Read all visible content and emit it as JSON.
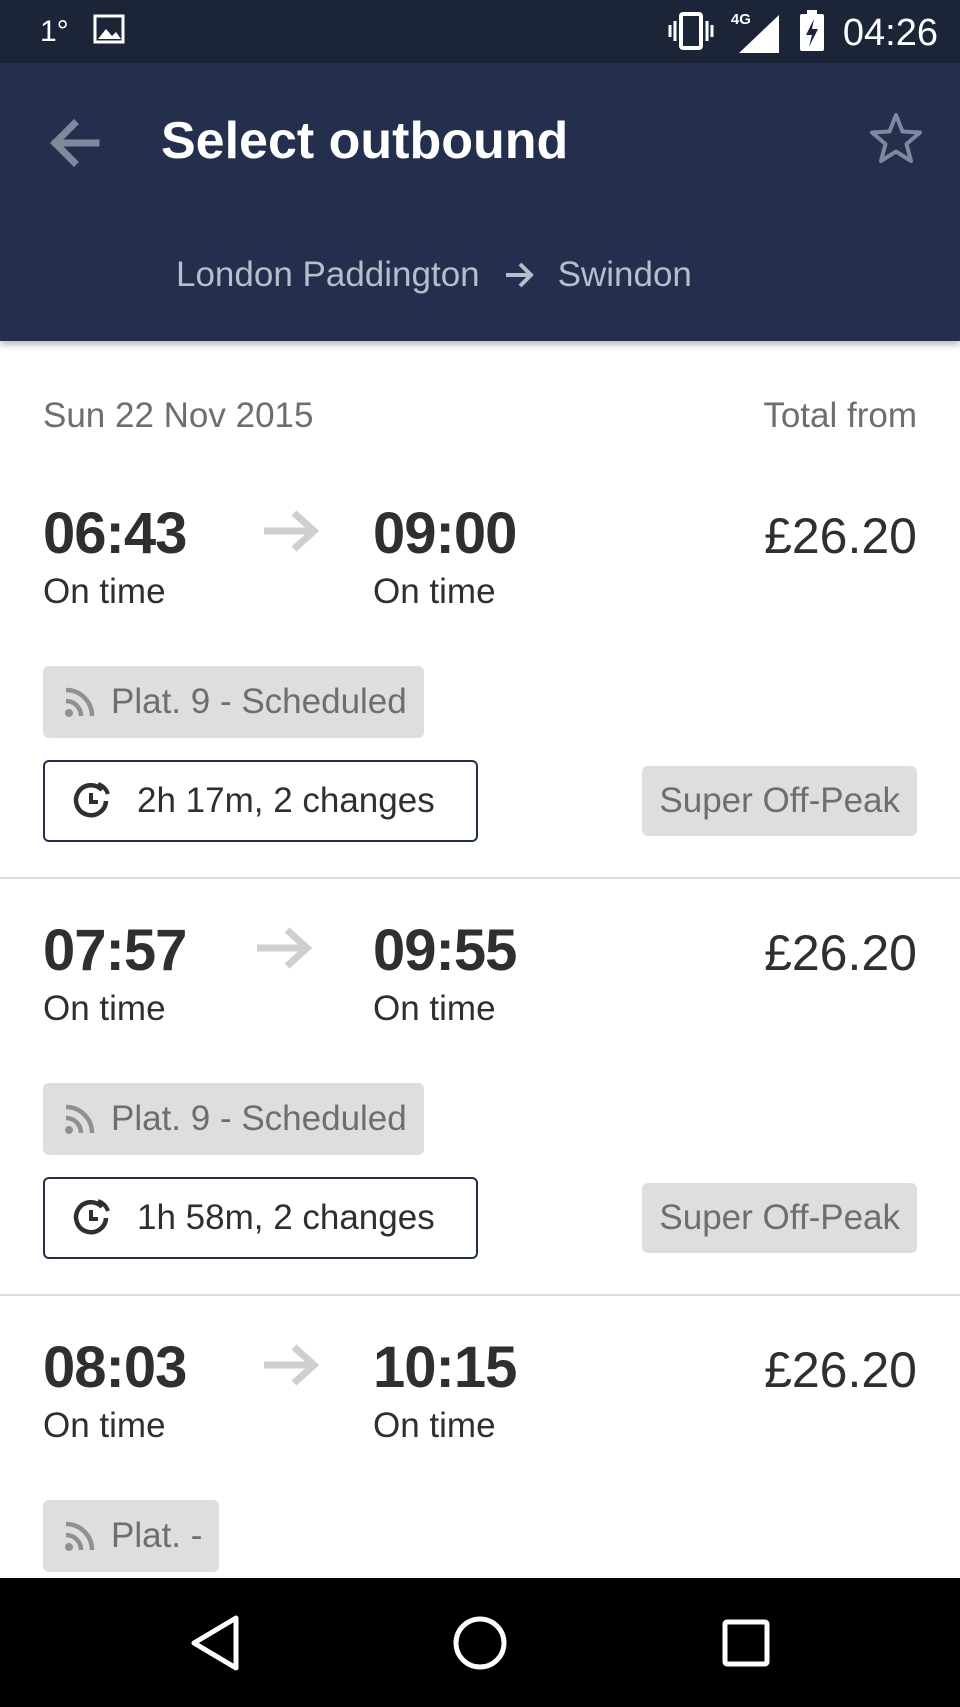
{
  "status_bar": {
    "temperature": "1°",
    "network": "4G",
    "time": "04:26",
    "icons": [
      "gallery-icon",
      "vibrate-icon",
      "signal-icon",
      "battery-charging-icon"
    ]
  },
  "header": {
    "title": "Select outbound",
    "origin": "London Paddington",
    "destination": "Swindon",
    "icons": [
      "back-arrow-icon",
      "star-icon",
      "route-arrow-icon"
    ]
  },
  "list": {
    "date": "Sun 22 Nov 2015",
    "total_label": "Total from"
  },
  "journeys": [
    {
      "depart": "06:43",
      "depart_status": "On time",
      "arrive": "09:00",
      "arrive_status": "On time",
      "price": "£26.20",
      "platform": "Plat. 9 - Scheduled",
      "duration": "2h 17m, 2 changes",
      "fare_type": "Super Off-Peak"
    },
    {
      "depart": "07:57",
      "depart_status": "On time",
      "arrive": "09:55",
      "arrive_status": "On time",
      "price": "£26.20",
      "platform": "Plat. 9 - Scheduled",
      "duration": "1h 58m, 2 changes",
      "fare_type": "Super Off-Peak"
    },
    {
      "depart": "08:03",
      "depart_status": "On time",
      "arrive": "10:15",
      "arrive_status": "On time",
      "price": "£26.20",
      "platform": "Plat. -"
    }
  ],
  "nav_bar": {
    "icons": [
      "back-triangle-icon",
      "home-circle-icon",
      "recents-square-icon"
    ]
  },
  "colors": {
    "status_bar": "#1c2538",
    "app_bar": "#232f4c",
    "chip_bg": "#dedede",
    "text_dark": "#2f2f2f",
    "text_muted": "#6e6e6e"
  }
}
